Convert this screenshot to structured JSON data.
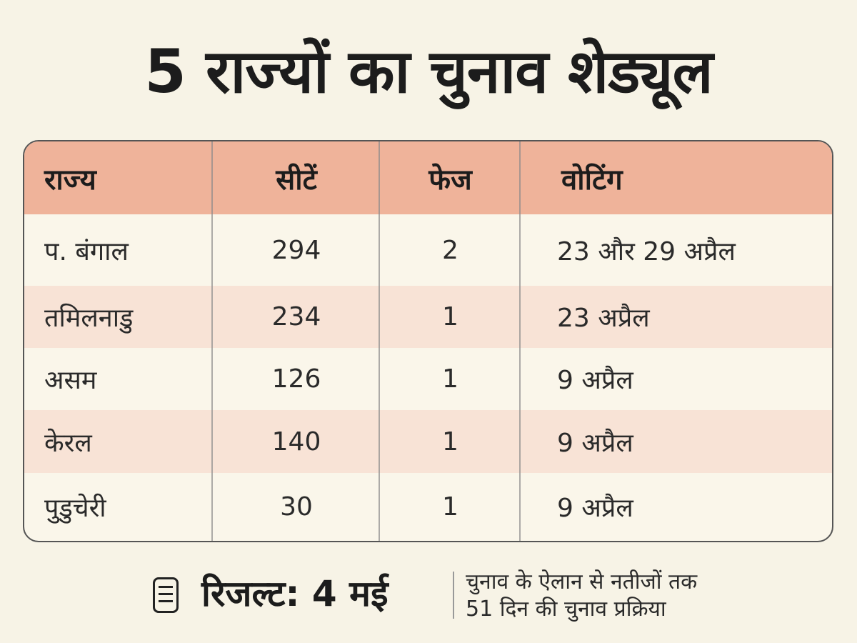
{
  "title": "5 राज्यों का चुनाव शेड्यूल",
  "table": {
    "headers": [
      "राज्य",
      "सीटें",
      "फेज",
      "वोटिंग"
    ],
    "rows": [
      [
        "प. बंगाल",
        "294",
        "2",
        "23 और 29 अप्रैल"
      ],
      [
        "तमिलनाडु",
        "234",
        "1",
        "23 अप्रैल"
      ],
      [
        "असम",
        "126",
        "1",
        "9 अप्रैल"
      ],
      [
        "केरल",
        "140",
        "1",
        "9 अप्रैल"
      ],
      [
        "पुडुचेरी",
        "30",
        "1",
        "9 अप्रैल"
      ]
    ]
  },
  "footer": {
    "icon": "list-icon",
    "result": "रिजल्ट: 4 मई",
    "note_line1": "चुनाव के ऐलान से नतीजों तक",
    "note_line2": "51 दिन की चुनाव प्रक्रिया"
  },
  "colors": {
    "background": "#f7f3e6",
    "header": "#efb39a",
    "row_alt": "#f8e3d6",
    "row": "#faf6ea"
  }
}
